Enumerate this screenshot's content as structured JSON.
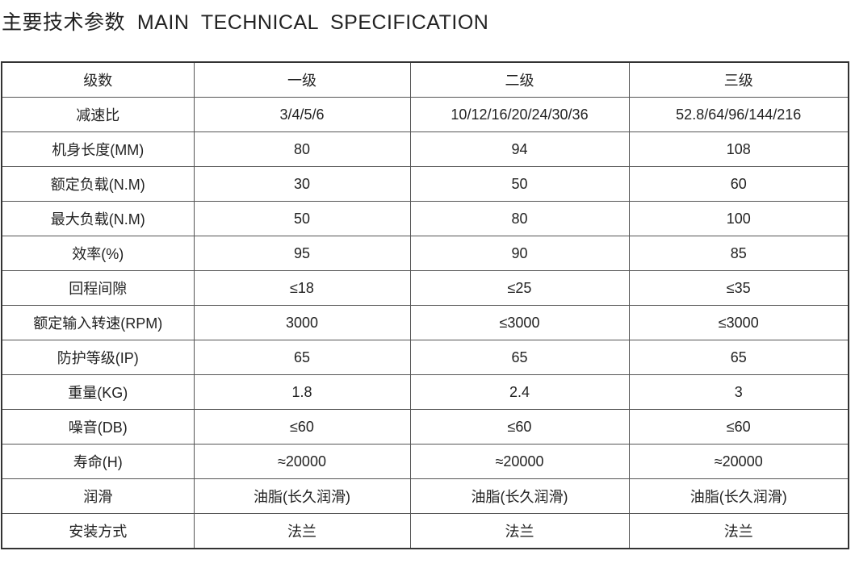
{
  "header": {
    "title": "主要技术参数  MAIN  TECHNICAL  SPECIFICATION"
  },
  "table": {
    "columns": [
      "级数",
      "一级",
      "二级",
      "三级"
    ],
    "rows": [
      [
        "减速比",
        "3/4/5/6",
        "10/12/16/20/24/30/36",
        "52.8/64/96/144/216"
      ],
      [
        "机身长度(MM)",
        "80",
        "94",
        "108"
      ],
      [
        "额定负载(N.M)",
        "30",
        "50",
        "60"
      ],
      [
        "最大负载(N.M)",
        "50",
        "80",
        "100"
      ],
      [
        "效率(%)",
        "95",
        "90",
        "85"
      ],
      [
        "回程间隙",
        "≤18",
        "≤25",
        "≤35"
      ],
      [
        "额定输入转速(RPM)",
        "3000",
        "≤3000",
        "≤3000"
      ],
      [
        "防护等级(IP)",
        "65",
        "65",
        "65"
      ],
      [
        "重量(KG)",
        "1.8",
        "2.4",
        "3"
      ],
      [
        "噪音(DB)",
        "≤60",
        "≤60",
        "≤60"
      ],
      [
        "寿命(H)",
        "≈20000",
        "≈20000",
        "≈20000"
      ],
      [
        "润滑",
        "油脂(长久润滑)",
        "油脂(长久润滑)",
        "油脂(长久润滑)"
      ],
      [
        "安装方式",
        "法兰",
        "法兰",
        "法兰"
      ]
    ]
  }
}
